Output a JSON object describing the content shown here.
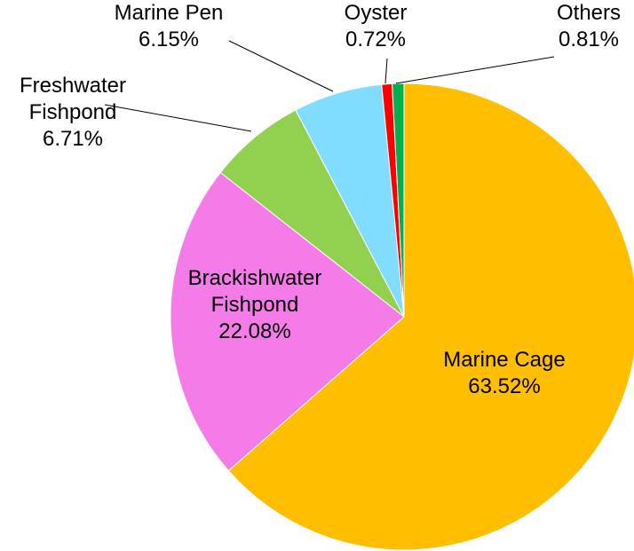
{
  "chart_data": {
    "type": "pie",
    "title": "",
    "slices": [
      {
        "label": [
          "Marine Cage"
        ],
        "value_label": "63.52%",
        "value": 63.52,
        "color": "#FFBF00"
      },
      {
        "label": [
          "Brackishwater",
          "Fishpond"
        ],
        "value_label": "22.08%",
        "value": 22.08,
        "color": "#F57BE8"
      },
      {
        "label": [
          "Freshwater",
          "Fishpond"
        ],
        "value_label": "6.71%",
        "value": 6.71,
        "color": "#92D050"
      },
      {
        "label": [
          "Marine Pen"
        ],
        "value_label": "6.15%",
        "value": 6.15,
        "color": "#80DDFF"
      },
      {
        "label": [
          "Oyster"
        ],
        "value_label": "0.72%",
        "value": 0.72,
        "color": "#FF0000"
      },
      {
        "label": [
          "Others"
        ],
        "value_label": "0.81%",
        "value": 0.81,
        "color": "#00B050"
      }
    ],
    "start_angle": "12 o'clock",
    "direction": "clockwise",
    "legend": "none",
    "data_labels": "category name and percentage"
  }
}
